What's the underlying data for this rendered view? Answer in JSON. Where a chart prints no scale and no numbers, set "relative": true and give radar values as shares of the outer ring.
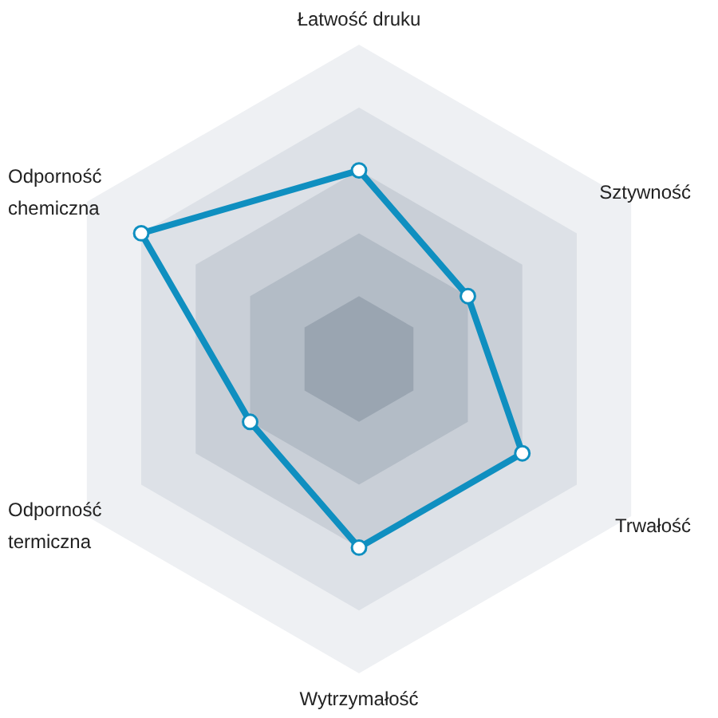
{
  "chart_data": {
    "type": "radar",
    "relative": true,
    "grid": true,
    "marker": "circle",
    "categories": [
      "Łatwość druku",
      "Sztywność",
      "Trwałość",
      "Wytrzymałość",
      "Odporność termiczna",
      "Odporność chemiczna"
    ],
    "series": [
      {
        "color": "#0f8fc0",
        "values": [
          0.6,
          0.4,
          0.6,
          0.6,
          0.4,
          0.8
        ]
      }
    ]
  }
}
